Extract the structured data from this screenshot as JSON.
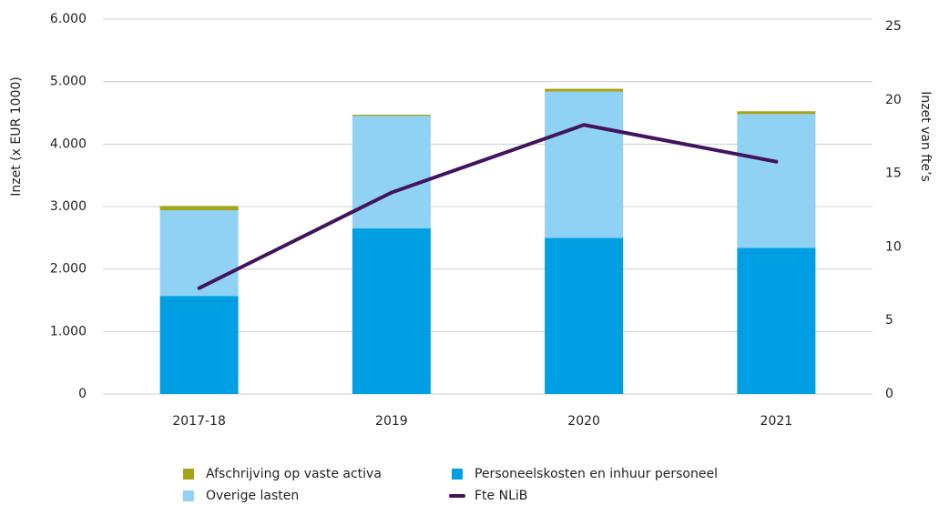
{
  "chart_data": {
    "type": "bar",
    "stacked": true,
    "ylabel": "Inzet (x EUR 1000)",
    "y2label": "Inzet van fte’s",
    "categories": [
      "2017-18",
      "2019",
      "2020",
      "2021"
    ],
    "series": [
      {
        "name": "Personeelskosten en inhuur personeel",
        "color": "#009fe3",
        "type": "bar",
        "values": [
          1570,
          2650,
          2500,
          2340
        ]
      },
      {
        "name": "Overige lasten",
        "color": "#90d2f3",
        "type": "bar",
        "values": [
          1370,
          1800,
          2340,
          2140
        ]
      },
      {
        "name": "Afschrijving op vaste activa",
        "color": "#a5a51b",
        "type": "bar",
        "values": [
          70,
          20,
          45,
          45
        ]
      },
      {
        "name": "Fte NLiB",
        "color": "#42145f",
        "type": "line",
        "axis": "y2",
        "values": [
          7.2,
          13.7,
          18.3,
          15.8
        ]
      }
    ],
    "ylim": [
      0,
      6000
    ],
    "yticks": [
      0,
      {
        "value": 1000,
        "label": "1.000"
      },
      {
        "value": 2000,
        "label": "2.000"
      },
      {
        "value": 3000,
        "label": "3.000"
      },
      {
        "value": 4000,
        "label": "4.000"
      },
      {
        "value": 5000,
        "label": "5.000"
      },
      {
        "value": 6000,
        "label": "6.000"
      }
    ],
    "y2lim": [
      0,
      25
    ],
    "y2ticks": [
      0,
      5,
      10,
      15,
      20,
      25
    ],
    "grid": true,
    "legend": "bottom"
  }
}
